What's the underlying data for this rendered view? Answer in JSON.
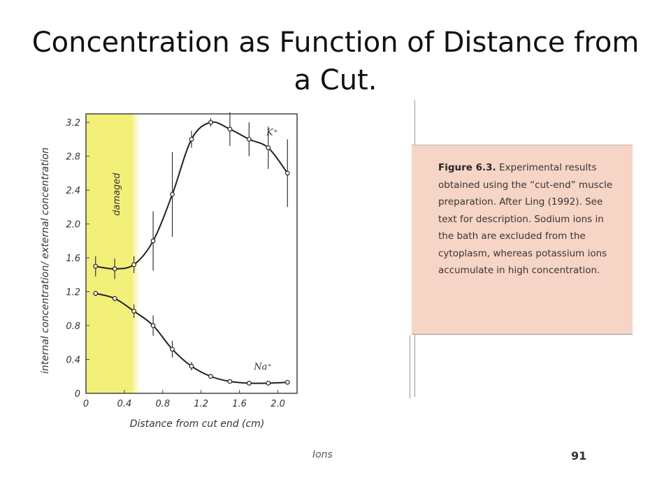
{
  "slide": {
    "title": "Concentration as Function of Distance from a Cut."
  },
  "caption": {
    "label": "Figure 6.3.",
    "text": "Experimental results obtained using the “cut-end” muscle preparation. After Ling (1992). See text for description. Sodium ions in the bath are excluded from the cytoplasm, whereas potassium ions accumulate in high concentration."
  },
  "footer": {
    "running_head": "Ions",
    "page_number": "91"
  },
  "colors": {
    "damaged_zone": "#f3f07a",
    "caption_bg": "#f6d4c6",
    "curve": "#222222"
  },
  "chart_data": {
    "type": "line",
    "xlabel": "Distance from cut end (cm)",
    "ylabel": "internal concentration/ external concentration",
    "xlim": [
      0,
      2.2
    ],
    "ylim": [
      0,
      3.3
    ],
    "xticks": [
      0,
      0.4,
      0.8,
      1.2,
      1.6,
      2.0
    ],
    "xtick_labels": [
      "0",
      "0.4",
      "0.8",
      "1.2",
      "1.6",
      "2.0"
    ],
    "yticks": [
      0,
      0.4,
      0.8,
      1.2,
      1.6,
      2.0,
      2.4,
      2.8,
      3.2
    ],
    "ytick_labels": [
      "0",
      "0.4",
      "0.8",
      "1.2",
      "1.6",
      "2.0",
      "2.4",
      "2.8",
      "3.2"
    ],
    "shaded_region": {
      "label": "damaged",
      "x_range": [
        0,
        0.5
      ]
    },
    "grid": false,
    "series": [
      {
        "name": "K⁺",
        "x": [
          0.1,
          0.3,
          0.5,
          0.7,
          0.9,
          1.1,
          1.3,
          1.5,
          1.7,
          1.9,
          2.1
        ],
        "y": [
          1.5,
          1.47,
          1.52,
          1.8,
          2.35,
          3.0,
          3.2,
          3.12,
          3.0,
          2.9,
          2.6
        ],
        "err": [
          0.12,
          0.12,
          0.1,
          0.35,
          0.5,
          0.1,
          0.05,
          0.2,
          0.2,
          0.25,
          0.4
        ],
        "marker": "open-circle"
      },
      {
        "name": "Na⁺",
        "x": [
          0.1,
          0.3,
          0.5,
          0.7,
          0.9,
          1.1,
          1.3,
          1.5,
          1.7,
          1.9,
          2.1
        ],
        "y": [
          1.18,
          1.12,
          0.97,
          0.8,
          0.52,
          0.32,
          0.2,
          0.14,
          0.12,
          0.12,
          0.13
        ],
        "err": [
          0.03,
          0.03,
          0.08,
          0.12,
          0.1,
          0.05,
          0.03,
          0.02,
          0.02,
          0.02,
          0.02
        ],
        "marker": "open-circle"
      }
    ]
  }
}
